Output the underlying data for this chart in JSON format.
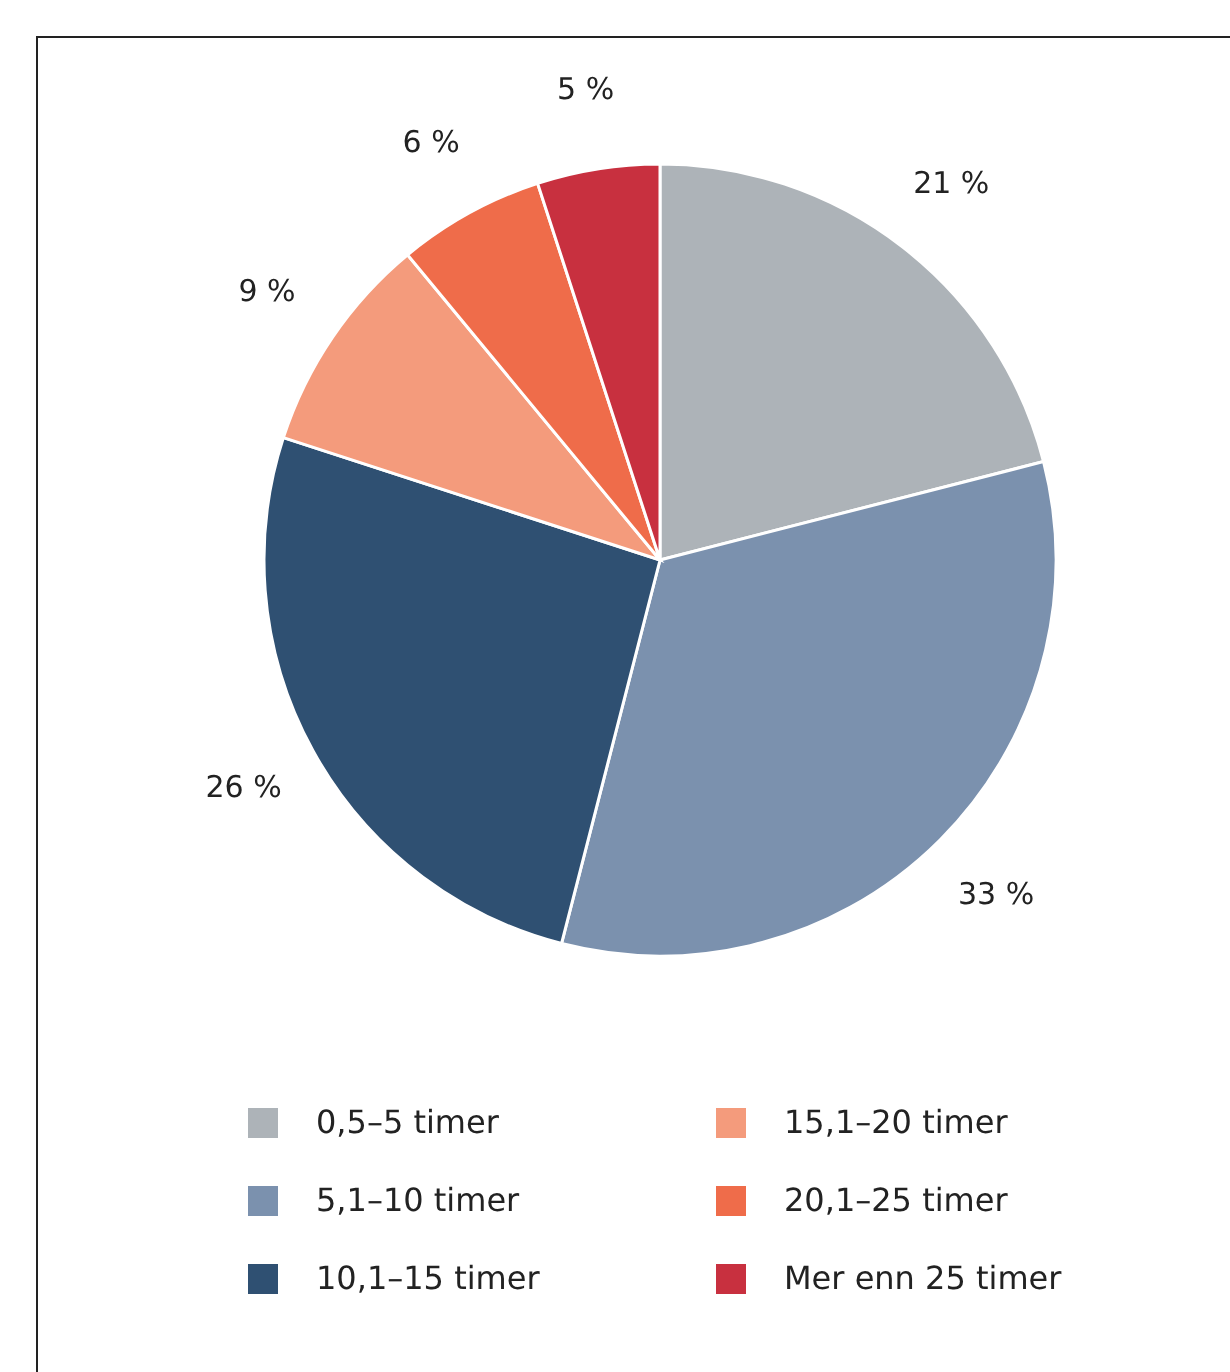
{
  "chart_data": {
    "type": "pie",
    "categories": [
      "0,5–5 timer",
      "5,1–10 timer",
      "10,1–15 timer",
      "15,1–20 timer",
      "20,1–25 timer",
      "Mer enn 25 timer"
    ],
    "values": [
      21,
      33,
      26,
      9,
      6,
      5
    ],
    "colors": [
      "#adb3b8",
      "#7b91ae",
      "#2f5072",
      "#f49b7c",
      "#ef6c4a",
      "#c8303f"
    ],
    "value_labels": [
      "21 %",
      "33 %",
      "26 %",
      "9 %",
      "6 %",
      "5 %"
    ],
    "legend": "bottom"
  }
}
